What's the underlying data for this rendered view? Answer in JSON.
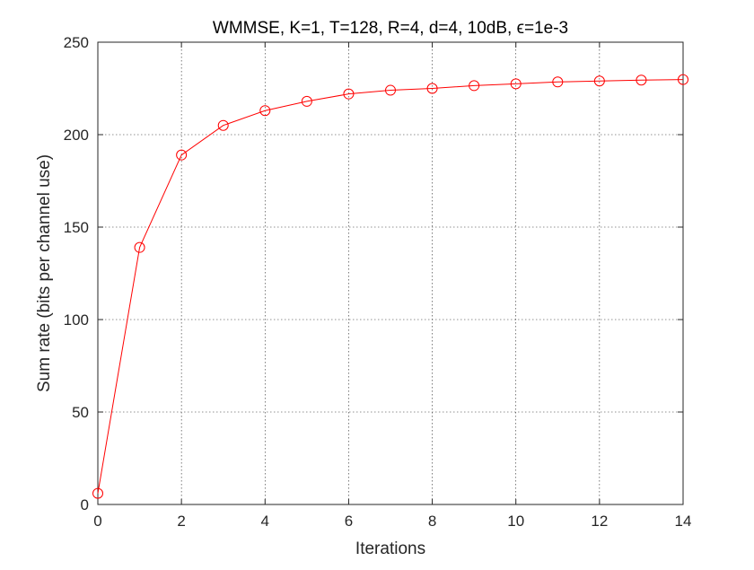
{
  "chart_data": {
    "type": "line",
    "title": "WMMSE, K=1, T=128, R=4, d=4, 10dB, ϵ=1e-3",
    "xlabel": "Iterations",
    "ylabel": "Sum rate (bits per channel use)",
    "xlim": [
      0,
      14
    ],
    "ylim": [
      0,
      250
    ],
    "xticks": [
      0,
      2,
      4,
      6,
      8,
      10,
      12,
      14
    ],
    "yticks": [
      0,
      50,
      100,
      150,
      200,
      250
    ],
    "grid": true,
    "series": [
      {
        "color": "#ff0000",
        "marker": "circle",
        "x": [
          0,
          1,
          2,
          3,
          4,
          5,
          6,
          7,
          8,
          9,
          10,
          11,
          12,
          13,
          14
        ],
        "y": [
          6,
          139,
          189,
          205,
          213,
          218,
          222,
          224,
          225,
          226.5,
          227.5,
          228.5,
          229,
          229.5,
          229.8
        ]
      }
    ]
  }
}
